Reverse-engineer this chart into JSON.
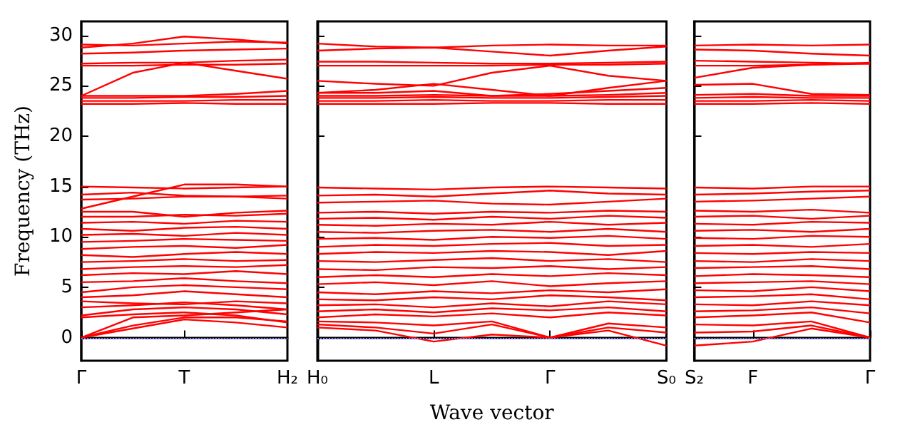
{
  "chart_data": [
    {
      "type": "line",
      "ylabel": "Frequency (THz)",
      "categories": [
        "Γ",
        null,
        "T",
        null,
        "H₂"
      ],
      "ylim": [
        -2.3,
        31.4
      ],
      "yticks": [
        0,
        5,
        10,
        15,
        20,
        25,
        30
      ],
      "ref_lines": [
        {
          "axis": "y",
          "value": 0,
          "color": "#8080ff",
          "line_style": "dotted"
        }
      ],
      "series": [
        {
          "color": "#ff0000",
          "values": [
            0,
            0.9,
            1.8,
            1.5,
            1.0
          ]
        },
        {
          "color": "#ff0000",
          "values": [
            0,
            1.2,
            2.0,
            2.0,
            1.6
          ]
        },
        {
          "color": "#ff0000",
          "values": [
            0,
            2.0,
            2.2,
            2.5,
            2.8
          ]
        },
        {
          "color": "#ff0000",
          "values": [
            2.0,
            2.3,
            2.5,
            2.2,
            1.5
          ]
        },
        {
          "color": "#ff0000",
          "values": [
            2.2,
            2.8,
            3.0,
            2.8,
            2.3
          ]
        },
        {
          "color": "#ff0000",
          "values": [
            3.0,
            3.2,
            3.5,
            3.2,
            2.8
          ]
        },
        {
          "color": "#ff0000",
          "values": [
            3.6,
            3.4,
            3.3,
            3.6,
            3.4
          ]
        },
        {
          "color": "#ff0000",
          "values": [
            4.0,
            4.2,
            4.6,
            4.3,
            4.0
          ]
        },
        {
          "color": "#ff0000",
          "values": [
            4.5,
            5.0,
            5.2,
            5.0,
            4.8
          ]
        },
        {
          "color": "#ff0000",
          "values": [
            5.5,
            5.6,
            5.9,
            5.6,
            5.4
          ]
        },
        {
          "color": "#ff0000",
          "values": [
            6.2,
            6.4,
            6.3,
            6.6,
            6.3
          ]
        },
        {
          "color": "#ff0000",
          "values": [
            6.8,
            7.0,
            7.1,
            7.0,
            7.2
          ]
        },
        {
          "color": "#ff0000",
          "values": [
            7.5,
            7.6,
            7.8,
            7.6,
            7.7
          ]
        },
        {
          "color": "#ff0000",
          "values": [
            8.2,
            8.0,
            8.3,
            8.5,
            8.3
          ]
        },
        {
          "color": "#ff0000",
          "values": [
            8.8,
            9.0,
            9.1,
            8.9,
            9.2
          ]
        },
        {
          "color": "#ff0000",
          "values": [
            9.5,
            9.6,
            9.8,
            9.7,
            9.6
          ]
        },
        {
          "color": "#ff0000",
          "values": [
            10.2,
            10.3,
            10.1,
            10.4,
            10.2
          ]
        },
        {
          "color": "#ff0000",
          "values": [
            10.8,
            10.6,
            10.9,
            11.0,
            10.8
          ]
        },
        {
          "color": "#ff0000",
          "values": [
            11.4,
            11.5,
            11.3,
            11.6,
            11.5
          ]
        },
        {
          "color": "#ff0000",
          "values": [
            12.0,
            12.0,
            12.2,
            12.1,
            12.3
          ]
        },
        {
          "color": "#ff0000",
          "values": [
            12.5,
            12.5,
            12.0,
            12.4,
            12.6
          ]
        },
        {
          "color": "#ff0000",
          "values": [
            12.8,
            14.0,
            15.2,
            15.2,
            15.0
          ]
        },
        {
          "color": "#ff0000",
          "values": [
            13.7,
            13.8,
            14.0,
            14.0,
            13.8
          ]
        },
        {
          "color": "#ff0000",
          "values": [
            14.2,
            14.4,
            14.1,
            14.0,
            14.1
          ]
        },
        {
          "color": "#ff0000",
          "values": [
            15.0,
            14.9,
            14.8,
            14.9,
            15.0
          ]
        },
        {
          "color": "#ff0000",
          "values": [
            23.2,
            23.2,
            23.3,
            23.2,
            23.2
          ]
        },
        {
          "color": "#ff0000",
          "values": [
            23.5,
            23.5,
            23.5,
            23.6,
            23.6
          ]
        },
        {
          "color": "#ff0000",
          "values": [
            23.8,
            23.8,
            23.9,
            23.9,
            24.0
          ]
        },
        {
          "color": "#ff0000",
          "values": [
            24.0,
            24.0,
            24.0,
            24.2,
            24.5
          ]
        },
        {
          "color": "#ff0000",
          "values": [
            24.0,
            26.3,
            27.3,
            26.5,
            25.7
          ]
        },
        {
          "color": "#ff0000",
          "values": [
            27.0,
            27.0,
            27.1,
            27.1,
            27.2
          ]
        },
        {
          "color": "#ff0000",
          "values": [
            27.2,
            27.3,
            27.3,
            27.5,
            27.6
          ]
        },
        {
          "color": "#ff0000",
          "values": [
            28.2,
            28.3,
            28.5,
            28.6,
            28.7
          ]
        },
        {
          "color": "#ff0000",
          "values": [
            28.8,
            29.2,
            29.9,
            29.6,
            29.2
          ]
        },
        {
          "color": "#ff0000",
          "values": [
            29.1,
            29.0,
            29.2,
            29.4,
            29.3
          ]
        }
      ]
    },
    {
      "type": "line",
      "xlabel": "Wave vector",
      "tick_labels": "x",
      "categories": [
        "H₀",
        null,
        "L",
        null,
        "Γ",
        null,
        "S₀"
      ],
      "ylim": [
        -2.3,
        31.4
      ],
      "yticks": [
        0,
        5,
        10,
        15,
        20,
        25,
        30
      ],
      "ref_lines": [
        {
          "axis": "y",
          "value": 0,
          "color": "#8080ff",
          "line_style": "dotted"
        }
      ],
      "series": [
        {
          "color": "#ff0000",
          "values": [
            1.0,
            0.7,
            -0.4,
            0.3,
            0,
            0.7,
            -0.8
          ]
        },
        {
          "color": "#ff0000",
          "values": [
            1.3,
            1.0,
            0.4,
            1.3,
            0,
            1.0,
            0.5
          ]
        },
        {
          "color": "#ff0000",
          "values": [
            1.6,
            1.5,
            1.2,
            1.6,
            0,
            1.4,
            1.0
          ]
        },
        {
          "color": "#ff0000",
          "values": [
            2.0,
            2.3,
            2.1,
            2.4,
            2.0,
            2.5,
            2.2
          ]
        },
        {
          "color": "#ff0000",
          "values": [
            2.6,
            2.8,
            2.5,
            2.9,
            2.7,
            3.0,
            2.6
          ]
        },
        {
          "color": "#ff0000",
          "values": [
            3.2,
            3.3,
            3.0,
            3.4,
            3.1,
            3.6,
            3.3
          ]
        },
        {
          "color": "#ff0000",
          "values": [
            3.8,
            3.7,
            4.0,
            3.8,
            4.2,
            4.0,
            3.7
          ]
        },
        {
          "color": "#ff0000",
          "values": [
            4.5,
            4.3,
            4.6,
            4.4,
            4.7,
            4.5,
            4.8
          ]
        },
        {
          "color": "#ff0000",
          "values": [
            5.3,
            5.5,
            5.2,
            5.6,
            5.1,
            5.4,
            5.6
          ]
        },
        {
          "color": "#ff0000",
          "values": [
            6.0,
            6.2,
            6.0,
            6.3,
            6.1,
            6.4,
            6.2
          ]
        },
        {
          "color": "#ff0000",
          "values": [
            6.8,
            6.7,
            7.0,
            6.9,
            7.1,
            6.8,
            7.0
          ]
        },
        {
          "color": "#ff0000",
          "values": [
            7.6,
            7.5,
            7.7,
            7.9,
            7.6,
            7.8,
            7.5
          ]
        },
        {
          "color": "#ff0000",
          "values": [
            8.3,
            8.5,
            8.4,
            8.6,
            8.5,
            8.2,
            8.6
          ]
        },
        {
          "color": "#ff0000",
          "values": [
            9.0,
            9.2,
            9.1,
            9.3,
            9.4,
            9.1,
            9.2
          ]
        },
        {
          "color": "#ff0000",
          "values": [
            9.8,
            9.9,
            9.7,
            10.0,
            9.9,
            10.1,
            9.8
          ]
        },
        {
          "color": "#ff0000",
          "values": [
            10.5,
            10.4,
            10.6,
            10.7,
            10.5,
            10.8,
            10.5
          ]
        },
        {
          "color": "#ff0000",
          "values": [
            11.2,
            11.1,
            11.3,
            11.2,
            11.5,
            11.2,
            11.4
          ]
        },
        {
          "color": "#ff0000",
          "values": [
            11.8,
            11.9,
            11.7,
            12.0,
            11.8,
            12.1,
            11.9
          ]
        },
        {
          "color": "#ff0000",
          "values": [
            12.4,
            12.5,
            12.3,
            12.5,
            12.4,
            12.6,
            12.5
          ]
        },
        {
          "color": "#ff0000",
          "values": [
            13.4,
            13.5,
            13.6,
            13.3,
            13.2,
            13.5,
            13.8
          ]
        },
        {
          "color": "#ff0000",
          "values": [
            14.1,
            14.2,
            14.0,
            14.3,
            14.6,
            14.3,
            14.2
          ]
        },
        {
          "color": "#ff0000",
          "values": [
            14.9,
            14.8,
            14.7,
            14.9,
            15.0,
            14.9,
            14.8
          ]
        },
        {
          "color": "#ff0000",
          "values": [
            23.2,
            23.2,
            23.2,
            23.3,
            23.3,
            23.2,
            23.2
          ]
        },
        {
          "color": "#ff0000",
          "values": [
            23.5,
            23.5,
            23.6,
            23.5,
            23.5,
            23.6,
            23.6
          ]
        },
        {
          "color": "#ff0000",
          "values": [
            23.8,
            23.8,
            23.9,
            23.8,
            23.8,
            23.9,
            24.0
          ]
        },
        {
          "color": "#ff0000",
          "values": [
            24.0,
            24.0,
            24.1,
            24.0,
            24.0,
            24.1,
            24.3
          ]
        },
        {
          "color": "#ff0000",
          "values": [
            24.3,
            24.3,
            24.5,
            24.0,
            24.2,
            24.5,
            24.8
          ]
        },
        {
          "color": "#ff0000",
          "values": [
            24.3,
            24.6,
            25.2,
            24.6,
            24.0,
            24.8,
            25.5
          ]
        },
        {
          "color": "#ff0000",
          "values": [
            25.5,
            25.2,
            25.0,
            26.3,
            27.0,
            26.0,
            25.5
          ]
        },
        {
          "color": "#ff0000",
          "values": [
            27.0,
            27.0,
            27.0,
            27.0,
            27.1,
            27.1,
            27.2
          ]
        },
        {
          "color": "#ff0000",
          "values": [
            27.4,
            27.4,
            27.3,
            27.2,
            27.2,
            27.3,
            27.4
          ]
        },
        {
          "color": "#ff0000",
          "values": [
            28.5,
            28.7,
            28.8,
            28.4,
            28.0,
            28.5,
            28.9
          ]
        },
        {
          "color": "#ff0000",
          "values": [
            29.2,
            28.9,
            28.8,
            29.0,
            29.1,
            29.0,
            29.0
          ]
        }
      ]
    },
    {
      "type": "line",
      "tick_labels": "x",
      "categories": [
        "S₂",
        "F",
        null,
        "Γ"
      ],
      "ylim": [
        -2.3,
        31.4
      ],
      "yticks": [
        0,
        5,
        10,
        15,
        20,
        25,
        30
      ],
      "ref_lines": [
        {
          "axis": "y",
          "value": 0,
          "color": "#8080ff",
          "line_style": "dotted"
        }
      ],
      "series": [
        {
          "color": "#ff0000",
          "values": [
            -0.8,
            -0.4,
            0.9,
            0
          ]
        },
        {
          "color": "#ff0000",
          "values": [
            0.5,
            0.6,
            1.2,
            0
          ]
        },
        {
          "color": "#ff0000",
          "values": [
            1.3,
            1.2,
            1.6,
            0
          ]
        },
        {
          "color": "#ff0000",
          "values": [
            2.0,
            2.2,
            2.5,
            1.5
          ]
        },
        {
          "color": "#ff0000",
          "values": [
            2.6,
            2.7,
            3.0,
            2.4
          ]
        },
        {
          "color": "#ff0000",
          "values": [
            3.3,
            3.2,
            3.6,
            3.2
          ]
        },
        {
          "color": "#ff0000",
          "values": [
            4.0,
            4.1,
            4.3,
            3.8
          ]
        },
        {
          "color": "#ff0000",
          "values": [
            4.7,
            4.6,
            5.0,
            4.6
          ]
        },
        {
          "color": "#ff0000",
          "values": [
            5.4,
            5.5,
            5.6,
            5.3
          ]
        },
        {
          "color": "#ff0000",
          "values": [
            6.1,
            6.3,
            6.2,
            6.0
          ]
        },
        {
          "color": "#ff0000",
          "values": [
            6.9,
            7.0,
            7.1,
            6.8
          ]
        },
        {
          "color": "#ff0000",
          "values": [
            7.6,
            7.5,
            7.8,
            7.6
          ]
        },
        {
          "color": "#ff0000",
          "values": [
            8.4,
            8.3,
            8.5,
            8.4
          ]
        },
        {
          "color": "#ff0000",
          "values": [
            9.1,
            9.2,
            9.0,
            9.3
          ]
        },
        {
          "color": "#ff0000",
          "values": [
            9.9,
            9.8,
            10.1,
            10.0
          ]
        },
        {
          "color": "#ff0000",
          "values": [
            10.6,
            10.7,
            10.5,
            10.8
          ]
        },
        {
          "color": "#ff0000",
          "values": [
            11.3,
            11.2,
            11.5,
            11.4
          ]
        },
        {
          "color": "#ff0000",
          "values": [
            12.0,
            12.1,
            11.8,
            12.1
          ]
        },
        {
          "color": "#ff0000",
          "values": [
            12.6,
            12.5,
            12.7,
            12.4
          ]
        },
        {
          "color": "#ff0000",
          "values": [
            13.5,
            13.6,
            13.8,
            14.0
          ]
        },
        {
          "color": "#ff0000",
          "values": [
            14.2,
            14.3,
            14.5,
            14.6
          ]
        },
        {
          "color": "#ff0000",
          "values": [
            14.9,
            14.8,
            15.0,
            15.0
          ]
        },
        {
          "color": "#ff0000",
          "values": [
            23.2,
            23.2,
            23.3,
            23.2
          ]
        },
        {
          "color": "#ff0000",
          "values": [
            23.5,
            23.5,
            23.6,
            23.5
          ]
        },
        {
          "color": "#ff0000",
          "values": [
            23.8,
            23.9,
            23.8,
            23.8
          ]
        },
        {
          "color": "#ff0000",
          "values": [
            24.1,
            24.2,
            24.0,
            24.0
          ]
        },
        {
          "color": "#ff0000",
          "values": [
            25.1,
            25.2,
            24.2,
            24.1
          ]
        },
        {
          "color": "#ff0000",
          "values": [
            25.8,
            26.8,
            27.1,
            27.3
          ]
        },
        {
          "color": "#ff0000",
          "values": [
            27.0,
            27.0,
            27.1,
            27.2
          ]
        },
        {
          "color": "#ff0000",
          "values": [
            27.5,
            27.4,
            27.3,
            27.2
          ]
        },
        {
          "color": "#ff0000",
          "values": [
            28.6,
            28.5,
            28.2,
            28.0
          ]
        },
        {
          "color": "#ff0000",
          "values": [
            29.0,
            29.1,
            29.0,
            29.1
          ]
        }
      ]
    }
  ]
}
